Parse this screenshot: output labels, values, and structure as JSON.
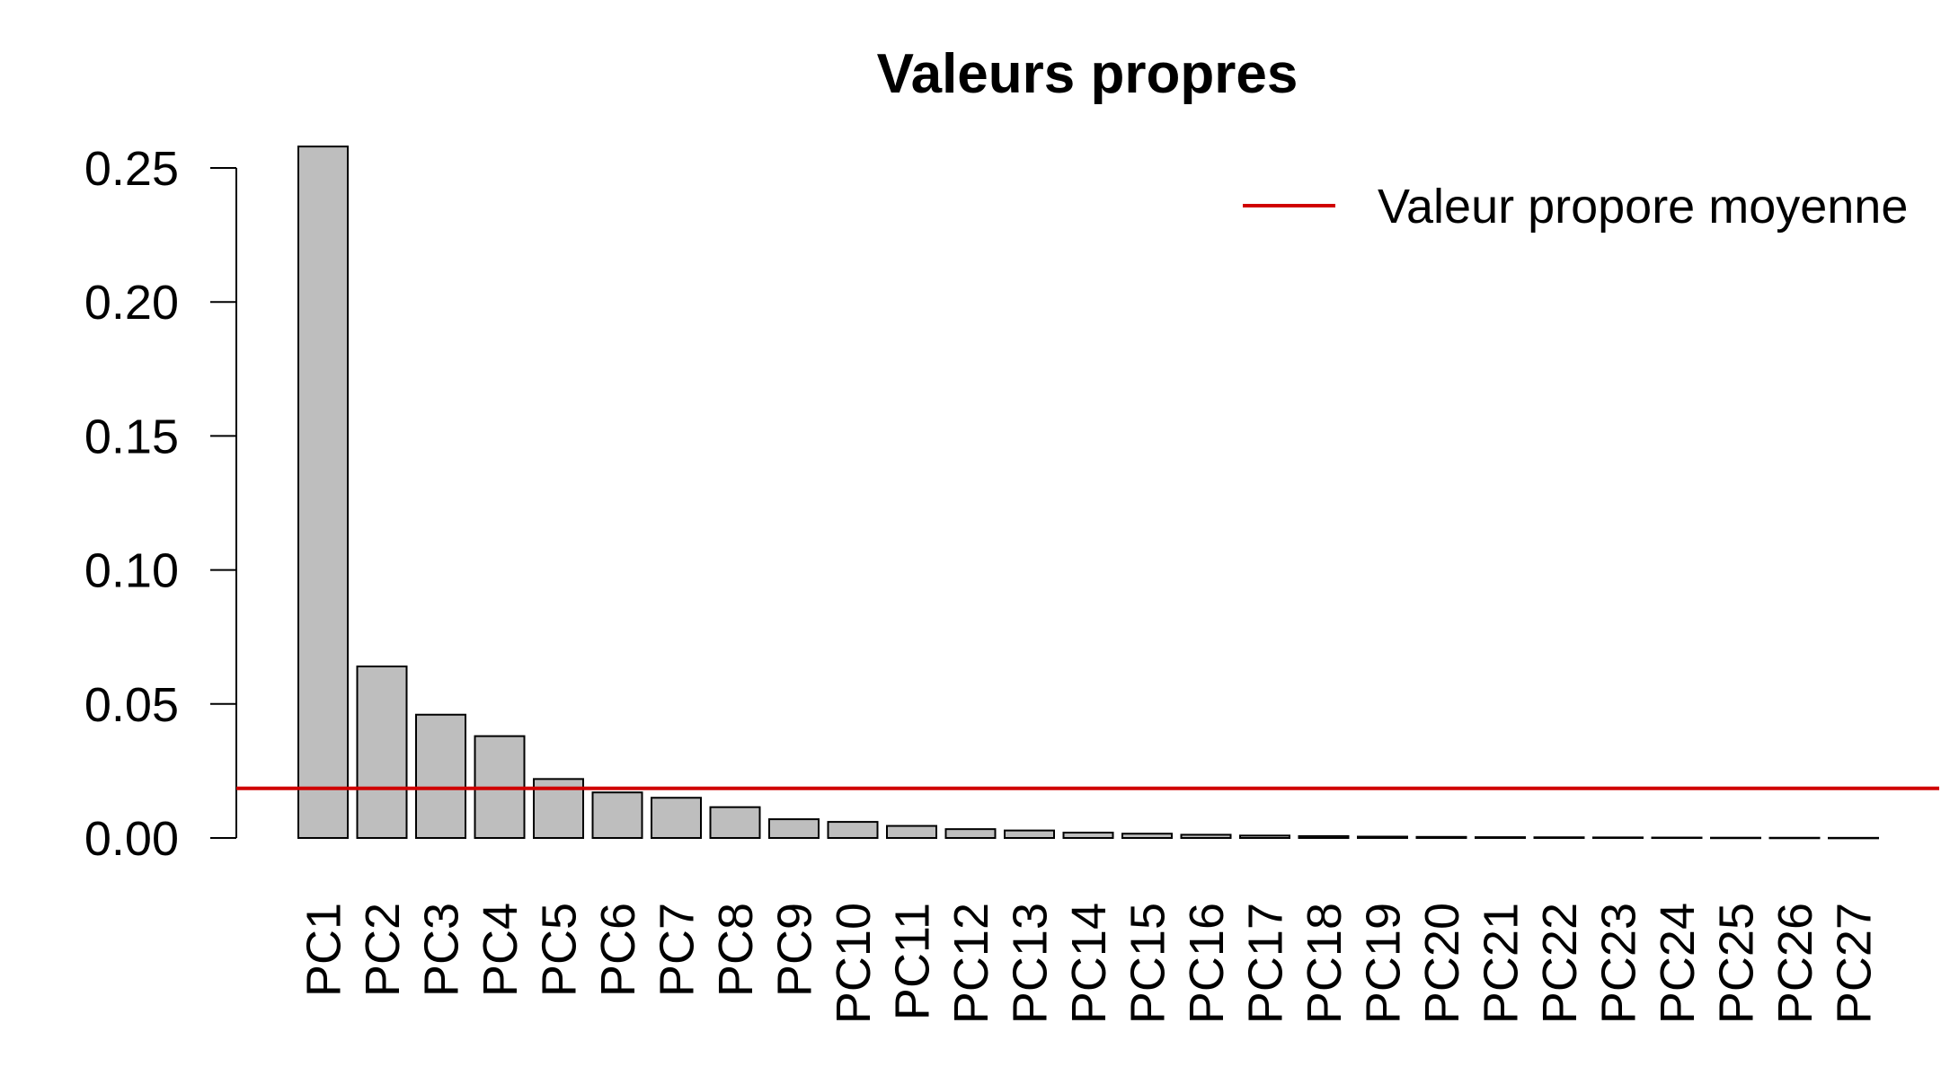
{
  "chart_data": {
    "type": "bar",
    "title": "Valeurs propres",
    "xlabel": "",
    "ylabel": "",
    "categories": [
      "PC1",
      "PC2",
      "PC3",
      "PC4",
      "PC5",
      "PC6",
      "PC7",
      "PC8",
      "PC9",
      "PC10",
      "PC11",
      "PC12",
      "PC13",
      "PC14",
      "PC15",
      "PC16",
      "PC17",
      "PC18",
      "PC19",
      "PC20",
      "PC21",
      "PC22",
      "PC23",
      "PC24",
      "PC25",
      "PC26",
      "PC27"
    ],
    "values": [
      0.258,
      0.064,
      0.046,
      0.038,
      0.022,
      0.017,
      0.015,
      0.0115,
      0.007,
      0.006,
      0.0045,
      0.0033,
      0.0028,
      0.002,
      0.0016,
      0.0012,
      0.0009,
      0.0007,
      0.0005,
      0.0004,
      0.0003,
      0.00025,
      0.0002,
      0.00015,
      0.0001,
      8e-05,
      5e-05
    ],
    "ylim": [
      0,
      0.25
    ],
    "yticks": [
      "0.00",
      "0.05",
      "0.10",
      "0.15",
      "0.20",
      "0.25"
    ],
    "ytick_values": [
      0,
      0.05,
      0.1,
      0.15,
      0.2,
      0.25
    ],
    "reference_line": {
      "value": 0.0185,
      "label": "Valeur propore moyenne",
      "color": "#d00000"
    },
    "bar_fill": "#bebebe",
    "bar_stroke": "#000000",
    "grid": false,
    "legend": "top-right"
  }
}
